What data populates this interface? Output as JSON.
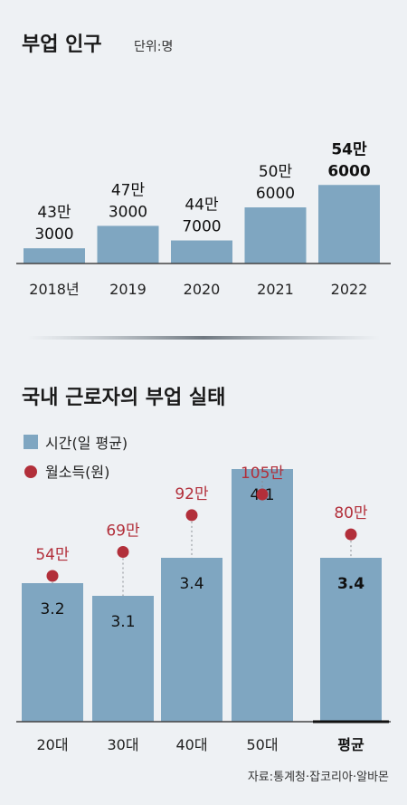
{
  "colors": {
    "bar": "#7fa6c1",
    "accent": "#b22f3a",
    "axis": "#444444",
    "background": "#eef1f4"
  },
  "chart_data": [
    {
      "type": "bar",
      "title": "부업 인구",
      "unit_label": "단위:명",
      "categories": [
        "2018년",
        "2019",
        "2020",
        "2021",
        "2022"
      ],
      "values": [
        433000,
        473000,
        447000,
        506000,
        546000
      ],
      "value_labels": [
        [
          "43만",
          "3000"
        ],
        [
          "47만",
          "3000"
        ],
        [
          "44만",
          "7000"
        ],
        [
          "50만",
          "6000"
        ],
        [
          "54만",
          "6000"
        ]
      ],
      "highlight_index": 4
    },
    {
      "type": "bar",
      "title": "국내 근로자의 부업 실태",
      "categories": [
        "20대",
        "30대",
        "40대",
        "50대",
        "평균"
      ],
      "legend": [
        {
          "label": "시간(일 평균)",
          "marker": "square"
        },
        {
          "label": "월소득(원)",
          "marker": "circle"
        }
      ],
      "series": [
        {
          "name": "시간(일 평균)",
          "values": [
            3.2,
            3.1,
            3.4,
            4.1,
            3.4
          ],
          "labels": [
            "3.2",
            "3.1",
            "3.4",
            "4.1",
            "3.4"
          ]
        },
        {
          "name": "월소득(원)",
          "values": [
            540000,
            690000,
            920000,
            1050000,
            800000
          ],
          "labels": [
            "54만",
            "69만",
            "92만",
            "105만",
            "80만"
          ]
        }
      ],
      "highlight_index": 4
    }
  ],
  "source": "자료:통계청·잡코리아·알바몬"
}
